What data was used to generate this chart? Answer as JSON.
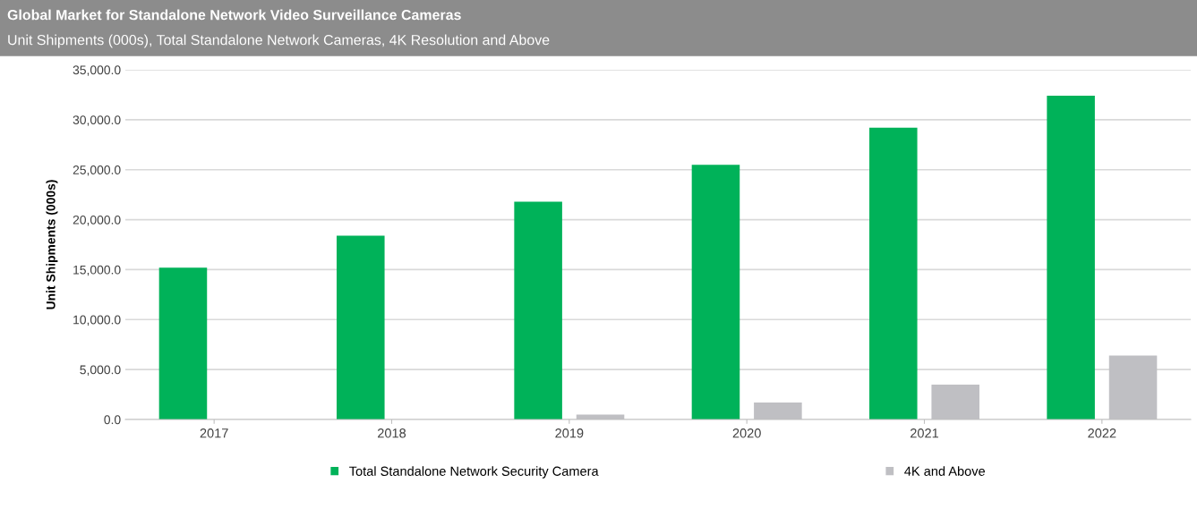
{
  "chart_data": {
    "type": "bar",
    "title": "Global Market for Standalone Network Video Surveillance Cameras",
    "subtitle": "Unit Shipments (000s), Total Standalone Network Cameras, 4K Resolution and Above",
    "ylabel": "Unit Shipments (000s)",
    "categories": [
      "2017",
      "2018",
      "2019",
      "2020",
      "2021",
      "2022"
    ],
    "series": [
      {
        "name": "Total Standalone Network Security Camera",
        "color": "#00b259",
        "values": [
          15200,
          18400,
          21800,
          25500,
          29200,
          32400
        ]
      },
      {
        "name": "4K and Above",
        "color": "#bfbfc3",
        "values": [
          null,
          null,
          500,
          1700,
          3500,
          6400
        ]
      }
    ],
    "ylim": [
      0,
      35000
    ],
    "yticks": [
      {
        "value": 0,
        "label": "0.0"
      },
      {
        "value": 5000,
        "label": "5,000.0"
      },
      {
        "value": 10000,
        "label": "10,000.0"
      },
      {
        "value": 15000,
        "label": "15,000.0"
      },
      {
        "value": 20000,
        "label": "20,000.0"
      },
      {
        "value": 25000,
        "label": "25,000.0"
      },
      {
        "value": 30000,
        "label": "30,000.0"
      },
      {
        "value": 35000,
        "label": "35,000.0"
      }
    ],
    "grid": "y",
    "legend": "bottom"
  }
}
